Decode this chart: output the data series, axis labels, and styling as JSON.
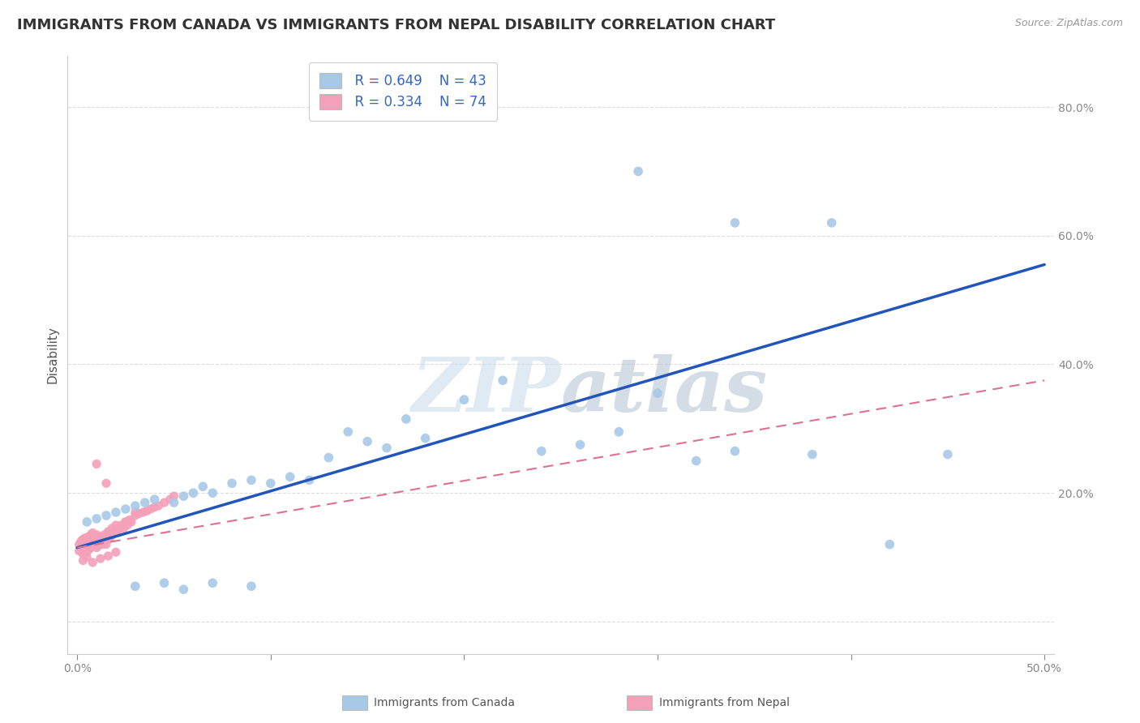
{
  "title": "IMMIGRANTS FROM CANADA VS IMMIGRANTS FROM NEPAL DISABILITY CORRELATION CHART",
  "source": "Source: ZipAtlas.com",
  "ylabel": "Disability",
  "xlim": [
    0.0,
    0.5
  ],
  "ylim": [
    -0.05,
    0.88
  ],
  "ytick_values": [
    0.0,
    0.2,
    0.4,
    0.6,
    0.8
  ],
  "ytick_labels": [
    "",
    "20.0%",
    "40.0%",
    "60.0%",
    "80.0%"
  ],
  "xtick_values": [
    0.0,
    0.1,
    0.2,
    0.3,
    0.4,
    0.5
  ],
  "canada_color": "#a8c8e8",
  "nepal_color": "#f4a0b8",
  "canada_line_color": "#2255bb",
  "nepal_line_color": "#e07090",
  "legend_R_canada": "R = 0.649",
  "legend_N_canada": "N = 43",
  "legend_R_nepal": "R = 0.334",
  "legend_N_nepal": "N = 74",
  "canada_scatter_x": [
    0.005,
    0.01,
    0.015,
    0.02,
    0.025,
    0.03,
    0.035,
    0.04,
    0.05,
    0.055,
    0.06,
    0.065,
    0.07,
    0.08,
    0.09,
    0.1,
    0.11,
    0.12,
    0.13,
    0.14,
    0.15,
    0.16,
    0.17,
    0.18,
    0.2,
    0.22,
    0.24,
    0.26,
    0.28,
    0.3,
    0.32,
    0.34,
    0.38,
    0.42,
    0.45,
    0.03,
    0.045,
    0.055,
    0.07,
    0.09,
    0.29,
    0.34,
    0.39
  ],
  "canada_scatter_y": [
    0.155,
    0.16,
    0.165,
    0.17,
    0.175,
    0.18,
    0.185,
    0.19,
    0.185,
    0.195,
    0.2,
    0.21,
    0.2,
    0.215,
    0.22,
    0.215,
    0.225,
    0.22,
    0.255,
    0.295,
    0.28,
    0.27,
    0.315,
    0.285,
    0.345,
    0.375,
    0.265,
    0.275,
    0.295,
    0.355,
    0.25,
    0.265,
    0.26,
    0.12,
    0.26,
    0.055,
    0.06,
    0.05,
    0.06,
    0.055,
    0.7,
    0.62,
    0.62
  ],
  "nepal_scatter_x": [
    0.001,
    0.001,
    0.002,
    0.002,
    0.003,
    0.003,
    0.003,
    0.004,
    0.004,
    0.004,
    0.005,
    0.005,
    0.005,
    0.006,
    0.006,
    0.006,
    0.007,
    0.007,
    0.007,
    0.008,
    0.008,
    0.008,
    0.009,
    0.009,
    0.01,
    0.01,
    0.01,
    0.011,
    0.011,
    0.012,
    0.012,
    0.013,
    0.013,
    0.014,
    0.014,
    0.015,
    0.015,
    0.016,
    0.016,
    0.017,
    0.017,
    0.018,
    0.018,
    0.019,
    0.02,
    0.02,
    0.021,
    0.022,
    0.023,
    0.024,
    0.025,
    0.026,
    0.027,
    0.028,
    0.03,
    0.032,
    0.034,
    0.036,
    0.038,
    0.04,
    0.042,
    0.045,
    0.048,
    0.05,
    0.003,
    0.005,
    0.008,
    0.012,
    0.016,
    0.02,
    0.025,
    0.03,
    0.01,
    0.015
  ],
  "nepal_scatter_y": [
    0.11,
    0.12,
    0.115,
    0.125,
    0.105,
    0.118,
    0.128,
    0.11,
    0.12,
    0.13,
    0.108,
    0.118,
    0.125,
    0.112,
    0.122,
    0.132,
    0.115,
    0.125,
    0.135,
    0.118,
    0.128,
    0.138,
    0.12,
    0.13,
    0.115,
    0.125,
    0.135,
    0.118,
    0.13,
    0.122,
    0.132,
    0.12,
    0.13,
    0.125,
    0.135,
    0.12,
    0.132,
    0.128,
    0.14,
    0.13,
    0.14,
    0.135,
    0.145,
    0.138,
    0.14,
    0.15,
    0.142,
    0.145,
    0.15,
    0.145,
    0.155,
    0.15,
    0.158,
    0.155,
    0.165,
    0.168,
    0.17,
    0.172,
    0.175,
    0.178,
    0.18,
    0.185,
    0.19,
    0.195,
    0.095,
    0.1,
    0.092,
    0.098,
    0.102,
    0.108,
    0.155,
    0.17,
    0.245,
    0.215
  ],
  "canada_trendline_x": [
    0.0,
    0.5
  ],
  "canada_trendline_y": [
    0.115,
    0.555
  ],
  "nepal_trendline_x": [
    0.0,
    0.5
  ],
  "nepal_trendline_y": [
    0.115,
    0.375
  ],
  "watermark_zip": "ZIP",
  "watermark_atlas": "atlas",
  "background_color": "#ffffff",
  "grid_color": "#dddddd",
  "title_fontsize": 13,
  "source_fontsize": 9,
  "tick_fontsize": 10,
  "ylabel_fontsize": 11,
  "legend_fontsize": 12
}
